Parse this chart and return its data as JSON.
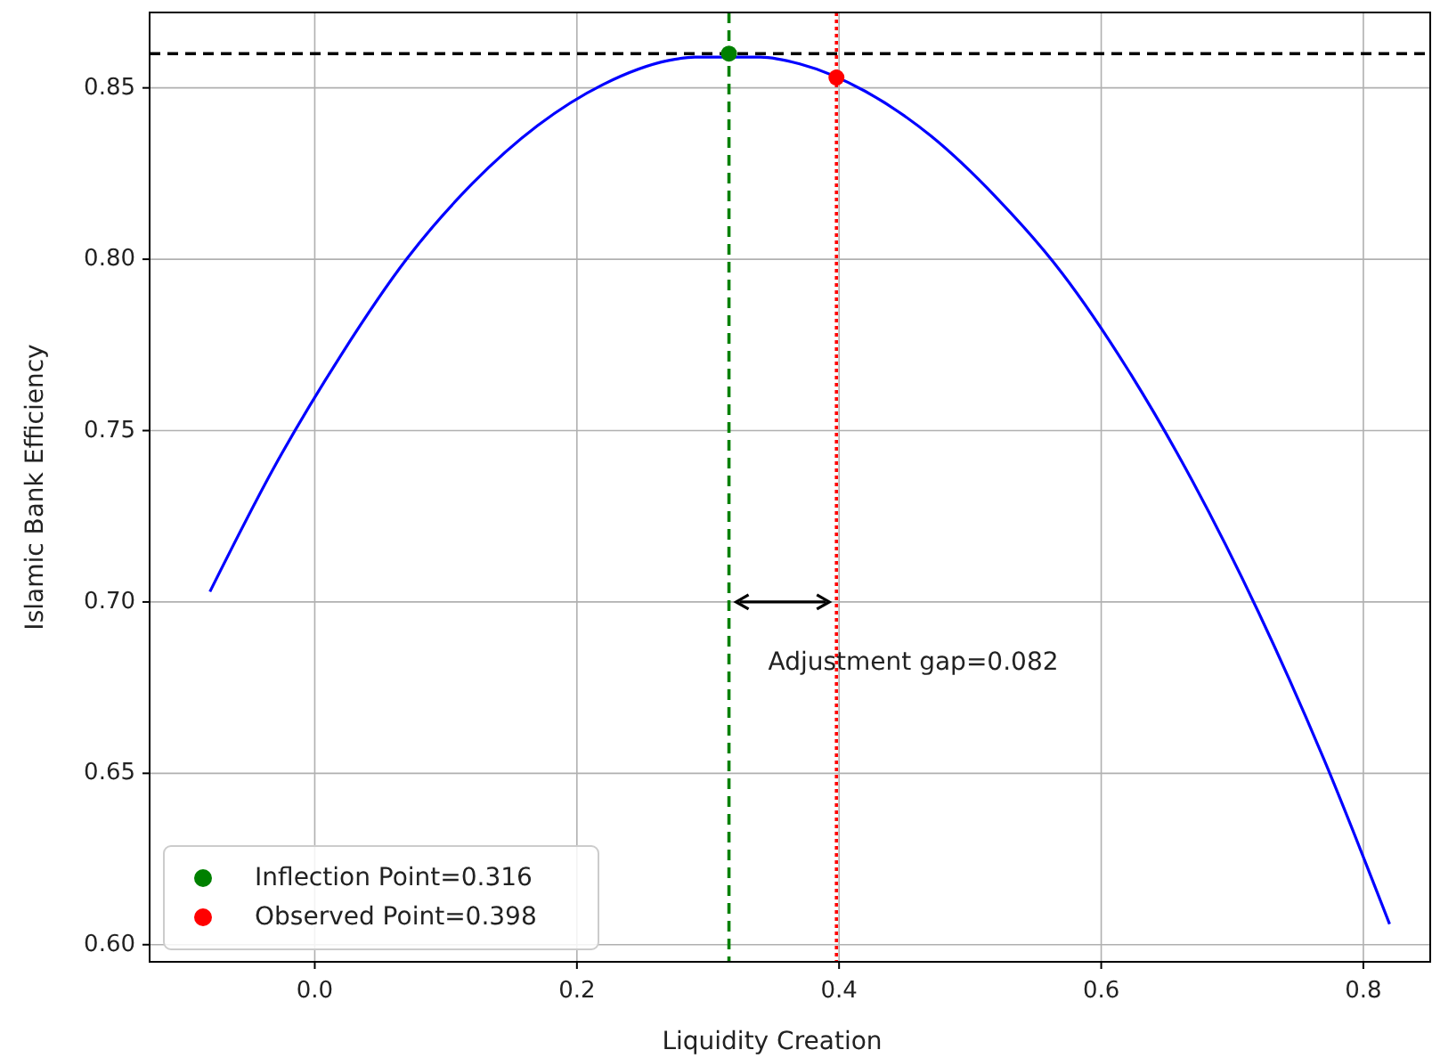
{
  "chart_data": {
    "type": "line",
    "xlabel": "Liquidity Creation",
    "ylabel": "Islamic Bank Efficiency",
    "xlim": [
      -0.126,
      0.851
    ],
    "ylim": [
      0.595,
      0.872
    ],
    "xticks": [
      {
        "value": 0,
        "label": "0.0"
      },
      {
        "value": 0.2,
        "label": "0.2"
      },
      {
        "value": 0.4,
        "label": "0.4"
      },
      {
        "value": 0.6,
        "label": "0.6"
      },
      {
        "value": 0.8,
        "label": "0.8"
      }
    ],
    "yticks": [
      {
        "value": 0.6,
        "label": "0.60"
      },
      0.65,
      {
        "value": 0.7,
        "label": "0.70"
      },
      0.75,
      {
        "value": 0.8,
        "label": "0.80"
      },
      0.85
    ],
    "grid": true,
    "legend": "bottom left",
    "series": [
      {
        "color": "#0000ff",
        "x": [
          -0.08,
          -0.03,
          0.02,
          0.07,
          0.12,
          0.17,
          0.22,
          0.27,
          0.29,
          0.34,
          0.37,
          0.42,
          0.47,
          0.52,
          0.57,
          0.62,
          0.67,
          0.72,
          0.77,
          0.82
        ],
        "values": [
          0.703,
          0.74,
          0.772,
          0.8,
          0.822,
          0.839,
          0.851,
          0.858,
          0.859,
          0.859,
          0.857,
          0.849,
          0.836,
          0.818,
          0.796,
          0.768,
          0.735,
          0.697,
          0.654,
          0.606
        ]
      },
      {
        "type": "scatter",
        "name": "Inflection Point=0.316",
        "color": "#008000",
        "x": [
          0.316
        ],
        "values": [
          0.86
        ]
      },
      {
        "type": "scatter",
        "name": "Observed Point=0.398",
        "color": "#ff0000",
        "x": [
          0.398
        ],
        "values": [
          0.853
        ]
      }
    ],
    "ref_lines": [
      {
        "axis": "y",
        "value": 0.86,
        "color": "#000000",
        "line_style": "dashed"
      },
      {
        "axis": "x",
        "value": 0.316,
        "color": "#008000",
        "line_style": "dashed"
      },
      {
        "axis": "x",
        "value": 0.398,
        "color": "#ff0000",
        "line_style": "dotted"
      }
    ],
    "annotations": [
      "Adjustment gap=0.082"
    ]
  }
}
